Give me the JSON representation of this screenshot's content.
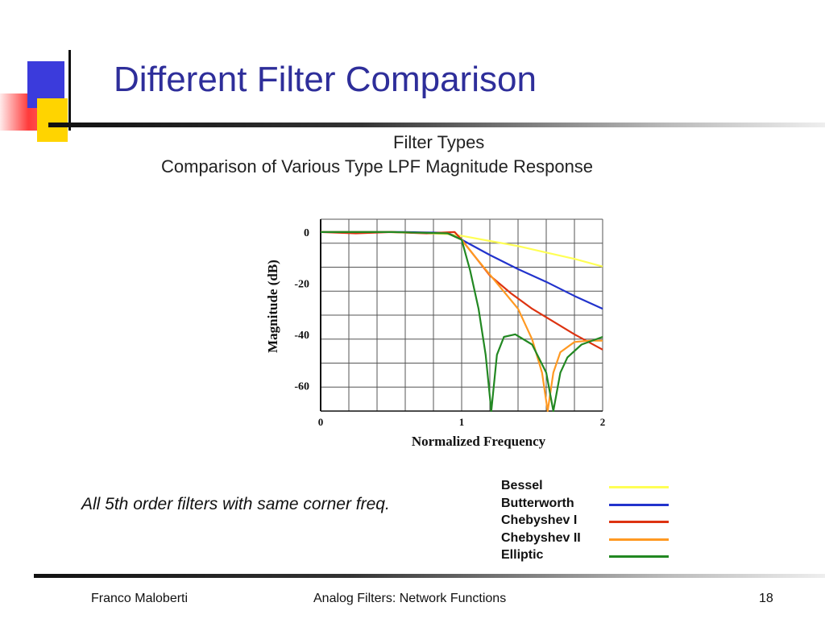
{
  "slide": {
    "title": "Different Filter Comparison",
    "note": "All 5th order filters with same corner freq.",
    "footer_left": "Franco Maloberti",
    "footer_center": "Analog Filters: Network Functions",
    "page_number": "18"
  },
  "chart_data": {
    "type": "line",
    "title": "Filter Types",
    "subtitle": "Comparison of Various Type LPF Magnitude Response",
    "xlabel": "Normalized Frequency",
    "ylabel": "Magnitude (dB)",
    "xlim": [
      0,
      2
    ],
    "ylim": [
      -70,
      5
    ],
    "xticks": [
      0,
      1,
      2
    ],
    "yticks": [
      0,
      -20,
      -40,
      -60
    ],
    "grid": true,
    "legend_position": "bottom-right",
    "series": [
      {
        "name": "Bessel",
        "color": "#ffff55",
        "x": [
          0,
          0.5,
          0.9,
          1.0,
          1.2,
          1.4,
          1.6,
          1.8,
          2.0
        ],
        "y": [
          0,
          0,
          -0.8,
          -1.5,
          -3.5,
          -5.5,
          -8,
          -10.5,
          -13.5
        ]
      },
      {
        "name": "Butterworth",
        "color": "#2233cc",
        "x": [
          0,
          0.6,
          0.9,
          1.0,
          1.1,
          1.2,
          1.4,
          1.6,
          1.8,
          2.0
        ],
        "y": [
          0,
          0,
          -0.3,
          -3,
          -6,
          -9,
          -14.5,
          -19.5,
          -25,
          -30
        ]
      },
      {
        "name": "Chebyshev I",
        "color": "#dd3311",
        "x": [
          0,
          0.25,
          0.5,
          0.75,
          0.95,
          1.0,
          1.1,
          1.2,
          1.35,
          1.5,
          1.65,
          1.8,
          2.0
        ],
        "y": [
          0,
          -0.5,
          0,
          -0.5,
          0,
          -3,
          -10,
          -17,
          -24,
          -30,
          -35,
          -40,
          -46
        ]
      },
      {
        "name": "Chebyshev II",
        "color": "#ff9922",
        "x": [
          0,
          0.5,
          0.9,
          1.0,
          1.1,
          1.25,
          1.4,
          1.5,
          1.57,
          1.61,
          1.65,
          1.7,
          1.8,
          1.9,
          2.0
        ],
        "y": [
          0,
          0,
          -0.5,
          -3,
          -10,
          -20,
          -30,
          -42,
          -55,
          -70,
          -55,
          -47,
          -43,
          -42.5,
          -42.5
        ]
      },
      {
        "name": "Elliptic",
        "color": "#228822",
        "x": [
          0,
          0.5,
          0.9,
          1.0,
          1.06,
          1.12,
          1.17,
          1.21,
          1.25,
          1.3,
          1.38,
          1.5,
          1.6,
          1.65,
          1.7,
          1.75,
          1.85,
          2.0
        ],
        "y": [
          0,
          0,
          -0.5,
          -3,
          -15,
          -30,
          -48,
          -70,
          -48,
          -41,
          -40,
          -44,
          -55,
          -70,
          -55,
          -49,
          -44,
          -41
        ]
      }
    ]
  }
}
